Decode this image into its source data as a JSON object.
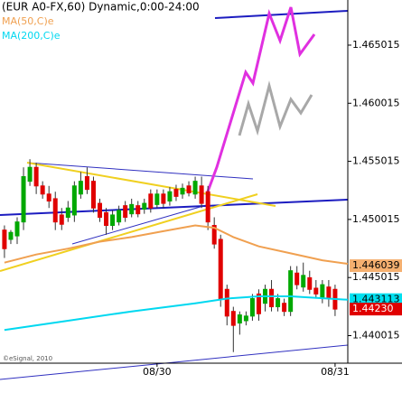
{
  "chart_data": {
    "type": "candlestick",
    "title": "(EUR A0-FX,60) Dynamic,0:00-24:00",
    "watermark": "©eSignal, 2010",
    "ylim": [
      1.4378,
      1.4689
    ],
    "yticks": [
      1.440015,
      1.445015,
      1.450015,
      1.455015,
      1.460015,
      1.465015
    ],
    "xlim": [
      -0.7,
      54
    ],
    "xticks": [
      {
        "value": 24,
        "label": "08/30"
      },
      {
        "value": 52,
        "label": "08/31"
      }
    ],
    "up_color": "#00a800",
    "down_color": "#e00000",
    "open": [
      1.4491,
      1.4483,
      1.4486,
      1.4498,
      1.4533,
      1.4545,
      1.4529,
      1.4522,
      1.4518,
      1.4504,
      1.4502,
      1.4504,
      1.4522,
      1.4537,
      1.4533,
      1.4514,
      1.4506,
      1.4495,
      1.4498,
      1.4512,
      1.4505,
      1.4512,
      1.4509,
      1.4522,
      1.4513,
      1.4522,
      1.4516,
      1.4526,
      1.4522,
      1.4529,
      1.4522,
      1.4529,
      1.4524,
      1.4495,
      1.4483,
      1.444,
      1.4421,
      1.4411,
      1.4413,
      1.4417,
      1.4436,
      1.4428,
      1.444,
      1.4425,
      1.4428,
      1.4421,
      1.4454,
      1.4442,
      1.445,
      1.4441,
      1.4432,
      1.4442,
      1.444
    ],
    "high": [
      1.4495,
      1.4491,
      1.4502,
      1.4545,
      1.4552,
      1.4549,
      1.4533,
      1.4529,
      1.4524,
      1.451,
      1.4516,
      1.4533,
      1.4541,
      1.4545,
      1.4537,
      1.4518,
      1.451,
      1.4508,
      1.4512,
      1.4516,
      1.4518,
      1.4516,
      1.4518,
      1.4526,
      1.4526,
      1.4526,
      1.4528,
      1.453,
      1.4531,
      1.4533,
      1.4537,
      1.4537,
      1.4529,
      1.4502,
      1.4487,
      1.4444,
      1.4425,
      1.4421,
      1.4421,
      1.4436,
      1.444,
      1.4444,
      1.4448,
      1.4436,
      1.4432,
      1.446,
      1.446,
      1.4463,
      1.4456,
      1.4448,
      1.4448,
      1.4448,
      1.4444
    ],
    "low": [
      1.4467,
      1.4479,
      1.4479,
      1.4491,
      1.4529,
      1.4522,
      1.4518,
      1.451,
      1.4491,
      1.4491,
      1.4498,
      1.4498,
      1.4518,
      1.4522,
      1.4506,
      1.4498,
      1.4487,
      1.4491,
      1.4495,
      1.4498,
      1.4502,
      1.4502,
      1.4505,
      1.4506,
      1.451,
      1.451,
      1.4512,
      1.4516,
      1.4518,
      1.452,
      1.4518,
      1.451,
      1.4491,
      1.4475,
      1.4425,
      1.4409,
      1.4386,
      1.4401,
      1.4409,
      1.4413,
      1.4413,
      1.4421,
      1.4421,
      1.4421,
      1.4417,
      1.4417,
      1.444,
      1.4438,
      1.4436,
      1.4432,
      1.4428,
      1.4425,
      1.4417
    ],
    "close": [
      1.4475,
      1.4489,
      1.4498,
      1.4537,
      1.4545,
      1.4529,
      1.4522,
      1.4516,
      1.4498,
      1.4496,
      1.451,
      1.4529,
      1.4533,
      1.4526,
      1.451,
      1.4502,
      1.4495,
      1.4504,
      1.4508,
      1.4502,
      1.4513,
      1.4505,
      1.4514,
      1.451,
      1.4522,
      1.4514,
      1.4524,
      1.452,
      1.4527,
      1.4523,
      1.4533,
      1.4514,
      1.4498,
      1.4479,
      1.4432,
      1.4417,
      1.4409,
      1.4418,
      1.4417,
      1.4432,
      1.4419,
      1.444,
      1.4425,
      1.4432,
      1.4421,
      1.4456,
      1.4444,
      1.4452,
      1.444,
      1.4436,
      1.4444,
      1.4432,
      1.4423
    ],
    "series": [
      {
        "name": "MA(50,C)e",
        "color": "#f0a050",
        "x": [
          0,
          5,
          10,
          15,
          20,
          25,
          30,
          33,
          36,
          40,
          45,
          50,
          54
        ],
        "values": [
          1.4463,
          1.447,
          1.4475,
          1.4481,
          1.4485,
          1.449,
          1.4495,
          1.4493,
          1.4485,
          1.4477,
          1.4471,
          1.4465,
          1.4462
        ]
      },
      {
        "name": "MA(200,C)e",
        "color": "#00d8f0",
        "x": [
          0,
          10,
          20,
          30,
          35,
          40,
          45,
          54
        ],
        "values": [
          1.4405,
          1.4413,
          1.4421,
          1.4428,
          1.4432,
          1.4434,
          1.4434,
          1.4431
        ]
      }
    ],
    "price_markers": [
      {
        "value": 1.446039,
        "color": "#f5b070",
        "text_color": "#000000"
      },
      {
        "value": 1.443113,
        "color": "#00e0f0",
        "text_color": "#000000"
      },
      {
        "value": 1.4423,
        "label": "1.44230",
        "color": "#e00000",
        "text_color": "#ffffff"
      }
    ]
  }
}
